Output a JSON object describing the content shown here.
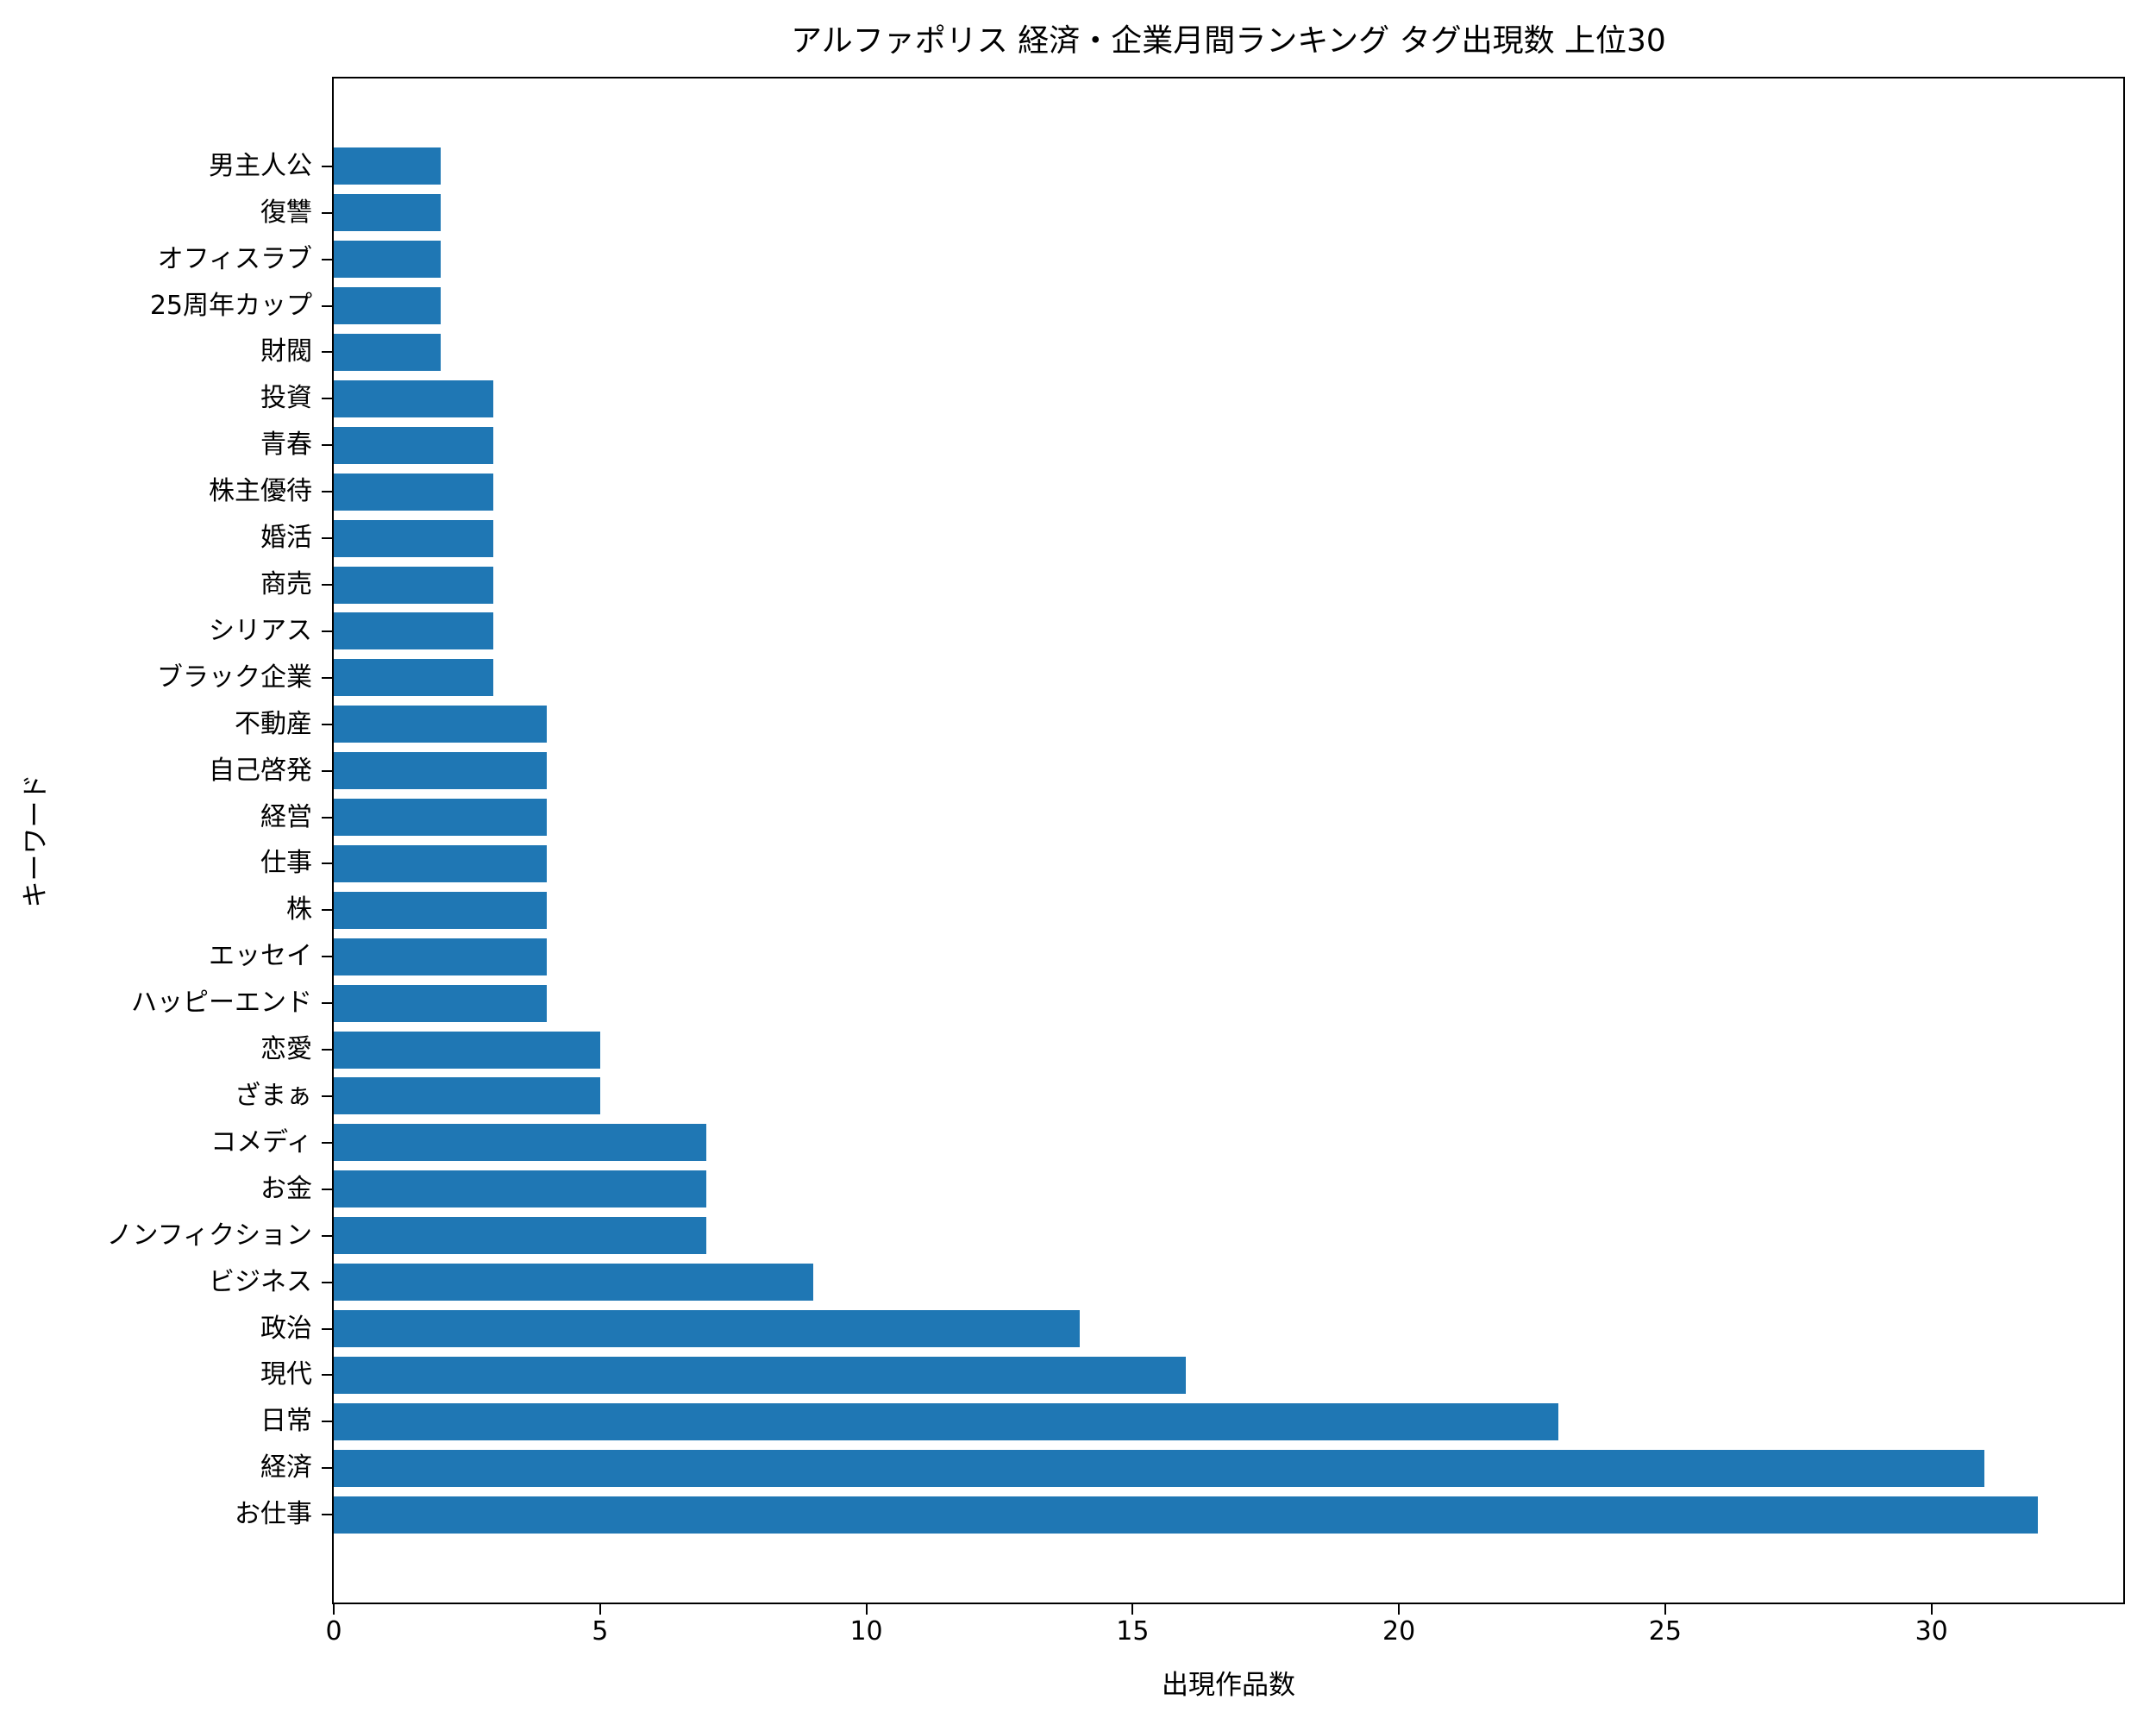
{
  "chart_data": {
    "type": "bar",
    "orientation": "horizontal",
    "title": "アルファポリス 経済・企業月間ランキング タグ出現数 上位30",
    "xlabel": "出現作品数",
    "ylabel": "キーワード",
    "categories": [
      "男主人公",
      "復讐",
      "オフィスラブ",
      "25周年カップ",
      "財閥",
      "投資",
      "青春",
      "株主優待",
      "婚活",
      "商売",
      "シリアス",
      "ブラック企業",
      "不動産",
      "自己啓発",
      "経営",
      "仕事",
      "株",
      "エッセイ",
      "ハッピーエンド",
      "恋愛",
      "ざまぁ",
      "コメディ",
      "お金",
      "ノンフィクション",
      "ビジネス",
      "政治",
      "現代",
      "日常",
      "経済",
      "お仕事"
    ],
    "values": [
      2,
      2,
      2,
      2,
      2,
      3,
      3,
      3,
      3,
      3,
      3,
      3,
      4,
      4,
      4,
      4,
      4,
      4,
      4,
      5,
      5,
      7,
      7,
      7,
      9,
      14,
      16,
      23,
      31,
      32
    ],
    "x_ticks": [
      0,
      5,
      10,
      15,
      20,
      25,
      30
    ],
    "xlim": [
      0,
      33.6
    ],
    "bar_color": "#1f77b4",
    "grid": false,
    "legend_position": "none"
  }
}
